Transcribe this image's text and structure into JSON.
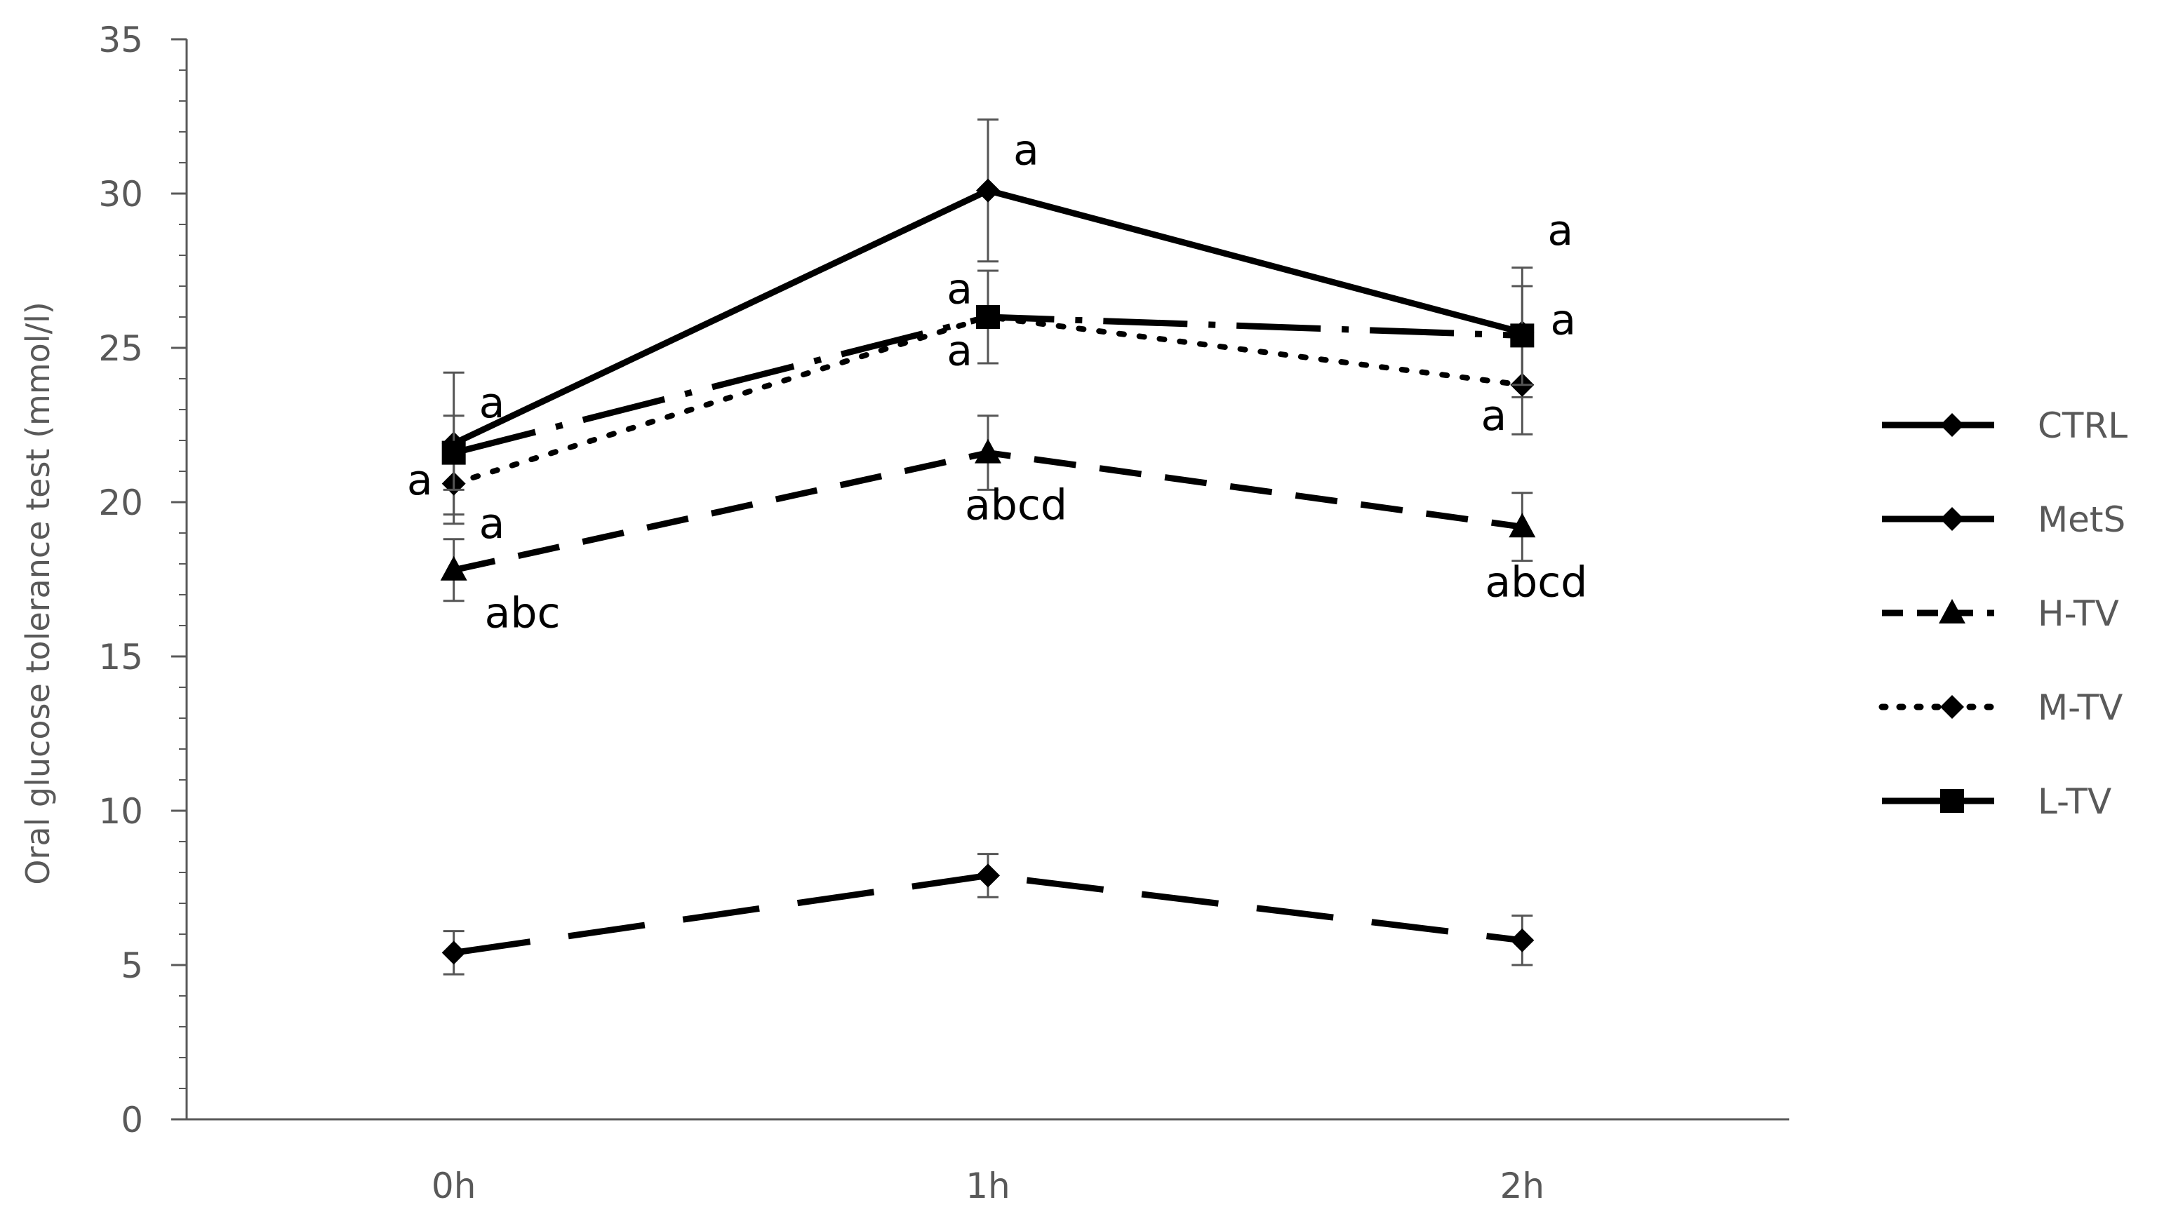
{
  "chart_data": {
    "type": "line",
    "title": "",
    "xlabel": "",
    "ylabel": "Oral glucose tolerance test (mmol/l)",
    "categories": [
      "0h",
      "1h",
      "2h"
    ],
    "ylim": [
      0,
      35
    ],
    "yticks": [
      "0",
      "5",
      "10",
      "15",
      "20",
      "25",
      "30",
      "35"
    ],
    "grid": false,
    "legend_position": "right",
    "series": [
      {
        "name": "CTRL",
        "values": [
          5.4,
          7.9,
          5.8
        ],
        "errors": [
          0.7,
          0.7,
          0.8
        ],
        "line": "long-dash",
        "marker": "diamond",
        "color": "#000000"
      },
      {
        "name": "MetS",
        "values": [
          21.9,
          30.1,
          25.5
        ],
        "errors": [
          2.3,
          2.3,
          2.1
        ],
        "line": "solid",
        "marker": "diamond",
        "color": "#000000"
      },
      {
        "name": "H-TV",
        "values": [
          17.8,
          21.6,
          19.2
        ],
        "errors": [
          1.0,
          1.2,
          1.1
        ],
        "line": "dash",
        "marker": "triangle",
        "color": "#000000"
      },
      {
        "name": "M-TV",
        "values": [
          20.6,
          26.0,
          23.8
        ],
        "errors": [
          1.3,
          1.5,
          1.6
        ],
        "line": "dot",
        "marker": "diamond",
        "color": "#000000"
      },
      {
        "name": "L-TV",
        "values": [
          21.6,
          26.0,
          25.4
        ],
        "errors": [
          1.2,
          1.5,
          1.6
        ],
        "line": "dash-dot",
        "marker": "square",
        "color": "#000000"
      }
    ],
    "annotations": [
      {
        "text": "a",
        "x": "0h",
        "y": 23.2,
        "anchor": "start",
        "dx": 36
      },
      {
        "text": "a",
        "x": "0h",
        "y": 20.7,
        "anchor": "end",
        "dx": -30
      },
      {
        "text": "a",
        "x": "0h",
        "y": 19.3,
        "anchor": "start",
        "dx": 36
      },
      {
        "text": "abc",
        "x": "0h",
        "y": 16.4,
        "anchor": "start",
        "dx": 44
      },
      {
        "text": "a",
        "x": "1h",
        "y": 31.4,
        "anchor": "start",
        "dx": 36
      },
      {
        "text": "a",
        "x": "1h",
        "y": 26.9,
        "anchor": "end",
        "dx": -22
      },
      {
        "text": "a",
        "x": "1h",
        "y": 24.9,
        "anchor": "end",
        "dx": -22
      },
      {
        "text": "abcd",
        "x": "1h",
        "y": 19.9,
        "anchor": "middle",
        "dx": 40
      },
      {
        "text": "a",
        "x": "2h",
        "y": 28.8,
        "anchor": "start",
        "dx": 36
      },
      {
        "text": "a",
        "x": "2h",
        "y": 25.9,
        "anchor": "start",
        "dx": 40
      },
      {
        "text": "a",
        "x": "2h",
        "y": 22.8,
        "anchor": "end",
        "dx": -22
      },
      {
        "text": "abcd",
        "x": "2h",
        "y": 17.4,
        "anchor": "middle",
        "dx": 20
      }
    ]
  }
}
